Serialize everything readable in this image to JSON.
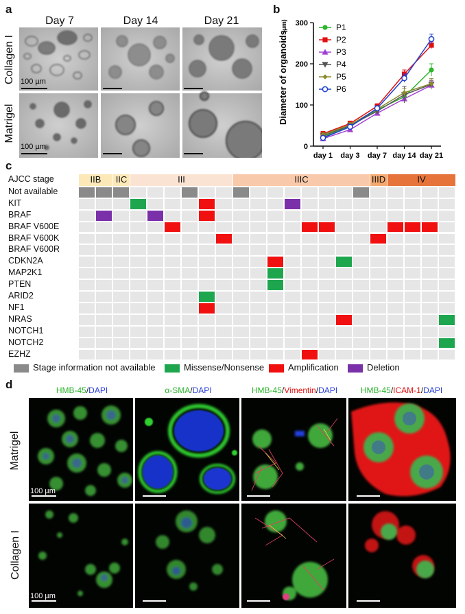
{
  "panel_a": {
    "label": "a",
    "days": [
      "Day 7",
      "Day 14",
      "Day 21"
    ],
    "rows": [
      "Collagen I",
      "Matrigel"
    ],
    "scale_bar": "100 µm"
  },
  "panel_b": {
    "label": "b",
    "ylabel": "Diameter of organoids",
    "yunit": "(μm)",
    "chart_data": {
      "type": "line",
      "categories": [
        "day 1",
        "day 3",
        "day 7",
        "day 14",
        "day 21"
      ],
      "ylim": [
        0,
        300
      ],
      "yticks": [
        0,
        100,
        200,
        300
      ],
      "legend_position": "top-left",
      "series": [
        {
          "name": "P1",
          "color": "#2db52d",
          "marker": "circle-filled",
          "values": [
            22,
            48,
            88,
            120,
            185
          ],
          "err": [
            5,
            5,
            6,
            10,
            15
          ]
        },
        {
          "name": "P2",
          "color": "#e01010",
          "marker": "square-filled",
          "values": [
            30,
            55,
            97,
            175,
            245
          ],
          "err": [
            6,
            6,
            6,
            10,
            8
          ]
        },
        {
          "name": "P3",
          "color": "#a040d0",
          "marker": "triangle-filled",
          "values": [
            18,
            40,
            80,
            115,
            148
          ],
          "err": [
            4,
            5,
            5,
            8,
            10
          ]
        },
        {
          "name": "P4",
          "color": "#555555",
          "marker": "triangle-down-filled",
          "values": [
            25,
            50,
            85,
            125,
            150
          ],
          "err": [
            5,
            5,
            6,
            20,
            10
          ]
        },
        {
          "name": "P5",
          "color": "#8a8a2a",
          "marker": "diamond-filled",
          "values": [
            28,
            52,
            90,
            130,
            152
          ],
          "err": [
            5,
            6,
            6,
            10,
            12
          ]
        },
        {
          "name": "P6",
          "color": "#1f3fd0",
          "marker": "circle-open",
          "values": [
            20,
            47,
            92,
            165,
            260
          ],
          "err": [
            5,
            6,
            6,
            10,
            12
          ]
        }
      ]
    }
  },
  "panel_c": {
    "label": "c",
    "stage_header": "AJCC stage",
    "stages": [
      {
        "name": "IIB",
        "start": 0,
        "span": 2,
        "color": "#fde9b8"
      },
      {
        "name": "IIC",
        "start": 2,
        "span": 1,
        "color": "#fde9b8"
      },
      {
        "name": "III",
        "start": 3,
        "span": 6,
        "color": "#fbe3d3"
      },
      {
        "name": "IIIC",
        "start": 9,
        "span": 8,
        "color": "#f8c9aa"
      },
      {
        "name": "IIID",
        "start": 17,
        "span": 1,
        "color": "#f6a96e"
      },
      {
        "name": "IV",
        "start": 18,
        "span": 4,
        "color": "#e6733a"
      }
    ],
    "columns": 22,
    "genes": [
      "Not available",
      "KIT",
      "BRAF",
      "BRAF V600E",
      "BRAF V600K",
      "BRAF V600R",
      "CDKN2A",
      "MAP2K1",
      "PTEN",
      "ARID2",
      "NF1",
      "NRAS",
      "NOTCH1",
      "NOTCH2",
      "EZHZ"
    ],
    "cells": [
      {
        "row": 0,
        "col": 0,
        "type": "na"
      },
      {
        "row": 0,
        "col": 1,
        "type": "na"
      },
      {
        "row": 0,
        "col": 2,
        "type": "na"
      },
      {
        "row": 0,
        "col": 6,
        "type": "na"
      },
      {
        "row": 0,
        "col": 9,
        "type": "na"
      },
      {
        "row": 0,
        "col": 16,
        "type": "na"
      },
      {
        "row": 1,
        "col": 3,
        "type": "missense"
      },
      {
        "row": 1,
        "col": 7,
        "type": "amp"
      },
      {
        "row": 1,
        "col": 12,
        "type": "del"
      },
      {
        "row": 2,
        "col": 1,
        "type": "del"
      },
      {
        "row": 2,
        "col": 4,
        "type": "del"
      },
      {
        "row": 2,
        "col": 7,
        "type": "amp"
      },
      {
        "row": 3,
        "col": 5,
        "type": "amp"
      },
      {
        "row": 3,
        "col": 13,
        "type": "amp"
      },
      {
        "row": 3,
        "col": 14,
        "type": "amp"
      },
      {
        "row": 3,
        "col": 18,
        "type": "amp"
      },
      {
        "row": 3,
        "col": 19,
        "type": "amp"
      },
      {
        "row": 3,
        "col": 20,
        "type": "amp"
      },
      {
        "row": 4,
        "col": 8,
        "type": "amp"
      },
      {
        "row": 4,
        "col": 17,
        "type": "amp"
      },
      {
        "row": 6,
        "col": 11,
        "type": "amp"
      },
      {
        "row": 6,
        "col": 15,
        "type": "missense"
      },
      {
        "row": 7,
        "col": 11,
        "type": "missense"
      },
      {
        "row": 8,
        "col": 11,
        "type": "missense"
      },
      {
        "row": 9,
        "col": 7,
        "type": "missense"
      },
      {
        "row": 10,
        "col": 7,
        "type": "amp"
      },
      {
        "row": 11,
        "col": 15,
        "type": "amp"
      },
      {
        "row": 11,
        "col": 21,
        "type": "missense"
      },
      {
        "row": 13,
        "col": 21,
        "type": "missense"
      },
      {
        "row": 14,
        "col": 13,
        "type": "amp"
      }
    ],
    "colors": {
      "na": "#8a8a8a",
      "missense": "#1ea64f",
      "amp": "#f01010",
      "del": "#7a30a8",
      "empty": "#e6e6e6"
    },
    "legend": [
      {
        "key": "na",
        "label": "Stage information not available"
      },
      {
        "key": "missense",
        "label": "Missense/Nonsense"
      },
      {
        "key": "amp",
        "label": "Amplification"
      },
      {
        "key": "del",
        "label": "Deletion"
      }
    ]
  },
  "panel_d": {
    "label": "d",
    "headers": [
      {
        "parts": [
          {
            "t": "HMB-45",
            "c": "g"
          },
          {
            "t": "/",
            "c": "k"
          },
          {
            "t": "DAPI",
            "c": "b"
          }
        ]
      },
      {
        "parts": [
          {
            "t": "α-SMA",
            "c": "g"
          },
          {
            "t": "/",
            "c": "k"
          },
          {
            "t": "DAPI",
            "c": "b"
          }
        ]
      },
      {
        "parts": [
          {
            "t": "HMB-45",
            "c": "g"
          },
          {
            "t": "/",
            "c": "k"
          },
          {
            "t": "Vimentin",
            "c": "r"
          },
          {
            "t": "/",
            "c": "k"
          },
          {
            "t": "DAPI",
            "c": "b"
          }
        ]
      },
      {
        "parts": [
          {
            "t": "HMB-45",
            "c": "g"
          },
          {
            "t": "/",
            "c": "k"
          },
          {
            "t": "ICAM-1",
            "c": "r"
          },
          {
            "t": "/",
            "c": "k"
          },
          {
            "t": "DAPI",
            "c": "b"
          }
        ]
      }
    ],
    "rows": [
      "Matrigel",
      "Collagen I"
    ],
    "scale_bar": "100 µm"
  }
}
